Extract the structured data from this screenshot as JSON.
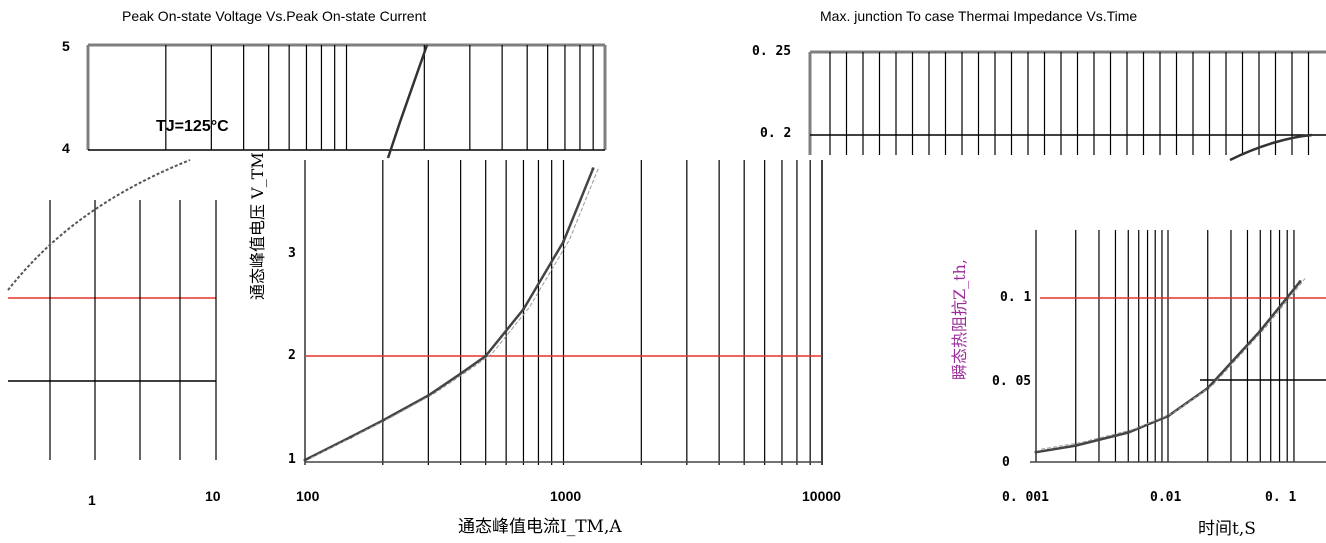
{
  "chart_data": [
    {
      "type": "line",
      "title": "Peak On-state Voltage Vs.Peak On-state Current",
      "xlabel": "通态峰值电流I_TM,A",
      "ylabel": "通态峰值电压 V_TM",
      "xscale": "log",
      "xlim": [
        100,
        10000
      ],
      "ylim": [
        1,
        5
      ],
      "x_ticks": [
        "1",
        "10",
        "100",
        "1000",
        "10000"
      ],
      "y_ticks": [
        "1",
        "2",
        "3",
        "4",
        "5"
      ],
      "annotation": "TJ=125°C",
      "series": [
        {
          "name": "TJ=125°C",
          "x": [
            100,
            150,
            200,
            300,
            400,
            500,
            700,
            1000,
            1300
          ],
          "y": [
            1.0,
            1.22,
            1.38,
            1.62,
            1.83,
            2.0,
            2.45,
            3.1,
            3.8
          ]
        }
      ],
      "grid": true
    },
    {
      "type": "line",
      "title": "Max. junction To case Thermai Impedance Vs.Time",
      "xlabel": "时间t,S",
      "ylabel": "瞬态热阻抗Z_th,",
      "xscale": "log",
      "xlim": [
        0.001,
        0.1
      ],
      "ylim": [
        0,
        0.25
      ],
      "x_ticks": [
        "0. 001",
        "0.01",
        "0. 1"
      ],
      "y_ticks": [
        "0",
        "0. 05",
        "0. 1",
        "0. 2",
        "0. 25"
      ],
      "series": [
        {
          "name": "Zth",
          "x": [
            0.001,
            0.002,
            0.005,
            0.01,
            0.02,
            0.05,
            0.1
          ],
          "y": [
            0.006,
            0.01,
            0.018,
            0.028,
            0.045,
            0.08,
            0.11
          ]
        }
      ],
      "grid": true
    }
  ],
  "colors": {
    "grid": "#000000",
    "frame": "#7f7f7f",
    "accent_line": "#e8332b",
    "curve": "#444444",
    "ylabel_right": "#9b2d9b"
  }
}
